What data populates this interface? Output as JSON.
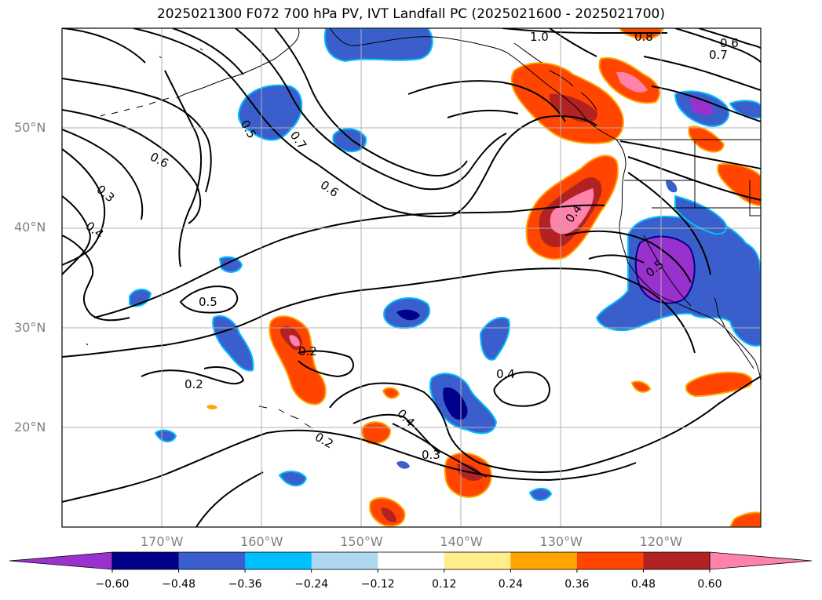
{
  "title": "2025021300 F072 700 hPa PV, IVT Landfall PC (2025021600 - 2025021700)",
  "lat_labels": [
    {
      "text": "50°N",
      "lat": 50
    },
    {
      "text": "40°N",
      "lat": 40
    },
    {
      "text": "30°N",
      "lat": 30
    },
    {
      "text": "20°N",
      "lat": 20
    }
  ],
  "lon_labels": [
    {
      "text": "170°W",
      "lon": -170
    },
    {
      "text": "160°W",
      "lon": -160
    },
    {
      "text": "150°W",
      "lon": -150
    },
    {
      "text": "140°W",
      "lon": -140
    },
    {
      "text": "130°W",
      "lon": -130
    },
    {
      "text": "120°W",
      "lon": -120
    }
  ],
  "contour_labels": [
    "1.0",
    "0.8",
    "0.6",
    "0.7",
    "0.5",
    "0.7",
    "0.6",
    "0.6",
    "0.3",
    "0.4",
    "0.5",
    "0.4",
    "0.5",
    "0.2",
    "0.2",
    "0.4",
    "0.4",
    "0.2",
    "0.3"
  ],
  "colorbar": {
    "ticks": [
      "−0.60",
      "−0.48",
      "−0.36",
      "−0.24",
      "−0.12",
      "0.12",
      "0.24",
      "0.36",
      "0.48",
      "0.60"
    ],
    "colors": [
      "#9932cc",
      "#00008b",
      "#3a5fcd",
      "#00bfff",
      "#add8f0",
      "#ffffff",
      "#ffec8b",
      "#ffa500",
      "#ff4500",
      "#b22222",
      "#ff82ab"
    ]
  }
}
